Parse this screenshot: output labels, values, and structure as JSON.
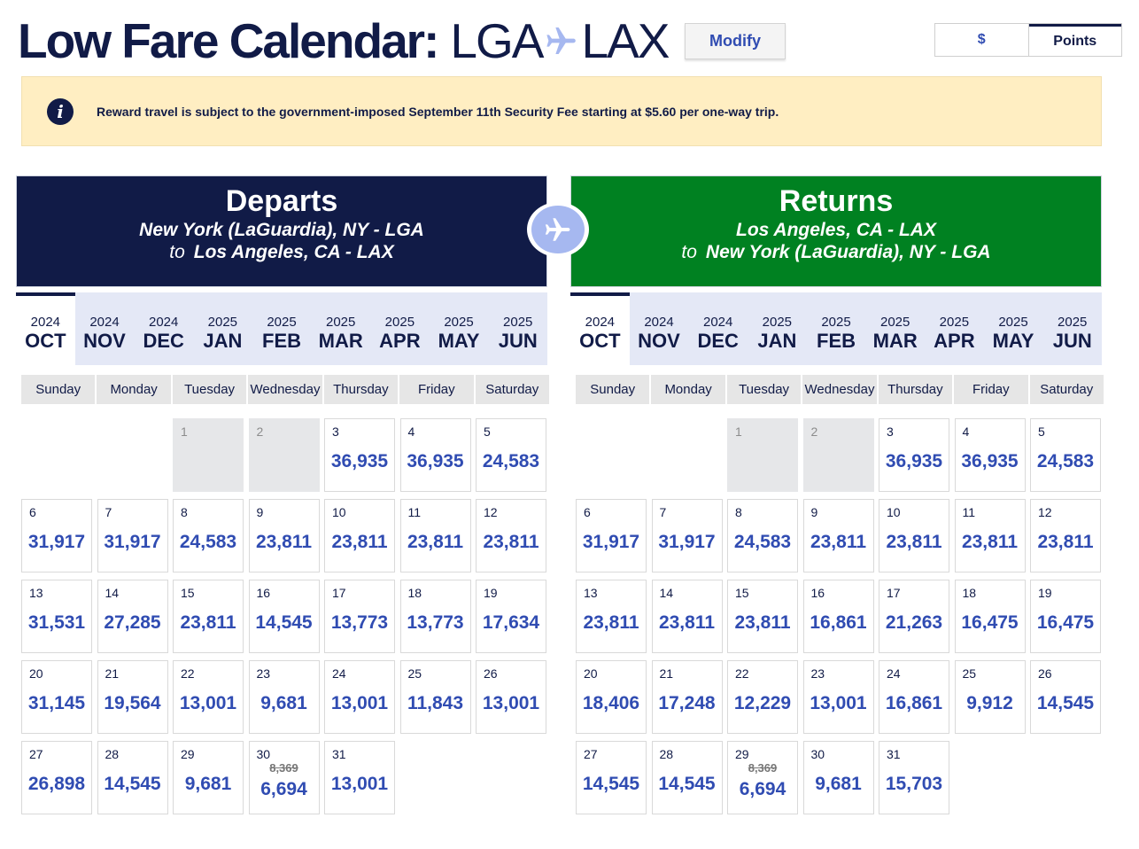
{
  "header": {
    "title": "Low Fare Calendar:",
    "origin_code": "LGA",
    "destination_code": "LAX",
    "modify_label": "Modify",
    "currency_options": [
      "$",
      "Points"
    ],
    "selected_currency": "Points"
  },
  "notice": {
    "icon": "info-icon",
    "icon_glyph": "i",
    "text": "Reward travel is subject to the government-imposed September 11th Security Fee starting at $5.60 per one-way trip."
  },
  "colors": {
    "navy": "#111b47",
    "green": "#008121",
    "fare_blue": "#304cb2",
    "notice_bg": "#ffeec2",
    "month_strip_bg": "#e4e8f6"
  },
  "panels": [
    {
      "title": "Departs",
      "from": "New York (LaGuardia), NY - LGA",
      "to_word": "to",
      "to": "Los Angeles, CA - LAX",
      "selected_month": "OCT",
      "months": [
        {
          "year": "2024",
          "month": "OCT"
        },
        {
          "year": "2024",
          "month": "NOV"
        },
        {
          "year": "2024",
          "month": "DEC"
        },
        {
          "year": "2025",
          "month": "JAN"
        },
        {
          "year": "2025",
          "month": "FEB"
        },
        {
          "year": "2025",
          "month": "MAR"
        },
        {
          "year": "2025",
          "month": "APR"
        },
        {
          "year": "2025",
          "month": "MAY"
        },
        {
          "year": "2025",
          "month": "JUN"
        }
      ],
      "weekdays": [
        "Sunday",
        "Monday",
        "Tuesday",
        "Wednesday",
        "Thursday",
        "Friday",
        "Saturday"
      ],
      "leading_blanks": 2,
      "days": [
        {
          "day": "1",
          "disabled": true
        },
        {
          "day": "2",
          "disabled": true
        },
        {
          "day": "3",
          "fare": "36,935"
        },
        {
          "day": "4",
          "fare": "36,935"
        },
        {
          "day": "5",
          "fare": "24,583"
        },
        {
          "day": "6",
          "fare": "31,917"
        },
        {
          "day": "7",
          "fare": "31,917"
        },
        {
          "day": "8",
          "fare": "24,583"
        },
        {
          "day": "9",
          "fare": "23,811"
        },
        {
          "day": "10",
          "fare": "23,811"
        },
        {
          "day": "11",
          "fare": "23,811"
        },
        {
          "day": "12",
          "fare": "23,811"
        },
        {
          "day": "13",
          "fare": "31,531"
        },
        {
          "day": "14",
          "fare": "27,285"
        },
        {
          "day": "15",
          "fare": "23,811"
        },
        {
          "day": "16",
          "fare": "14,545"
        },
        {
          "day": "17",
          "fare": "13,773"
        },
        {
          "day": "18",
          "fare": "13,773"
        },
        {
          "day": "19",
          "fare": "17,634"
        },
        {
          "day": "20",
          "fare": "31,145"
        },
        {
          "day": "21",
          "fare": "19,564"
        },
        {
          "day": "22",
          "fare": "13,001"
        },
        {
          "day": "23",
          "fare": "9,681"
        },
        {
          "day": "24",
          "fare": "13,001"
        },
        {
          "day": "25",
          "fare": "11,843"
        },
        {
          "day": "26",
          "fare": "13,001"
        },
        {
          "day": "27",
          "fare": "26,898"
        },
        {
          "day": "28",
          "fare": "14,545"
        },
        {
          "day": "29",
          "fare": "9,681"
        },
        {
          "day": "30",
          "fare": "6,694",
          "old_fare": "8,369"
        },
        {
          "day": "31",
          "fare": "13,001"
        }
      ]
    },
    {
      "title": "Returns",
      "from": "Los Angeles, CA - LAX",
      "to_word": "to",
      "to": "New York (LaGuardia), NY - LGA",
      "selected_month": "OCT",
      "months": [
        {
          "year": "2024",
          "month": "OCT"
        },
        {
          "year": "2024",
          "month": "NOV"
        },
        {
          "year": "2024",
          "month": "DEC"
        },
        {
          "year": "2025",
          "month": "JAN"
        },
        {
          "year": "2025",
          "month": "FEB"
        },
        {
          "year": "2025",
          "month": "MAR"
        },
        {
          "year": "2025",
          "month": "APR"
        },
        {
          "year": "2025",
          "month": "MAY"
        },
        {
          "year": "2025",
          "month": "JUN"
        }
      ],
      "weekdays": [
        "Sunday",
        "Monday",
        "Tuesday",
        "Wednesday",
        "Thursday",
        "Friday",
        "Saturday"
      ],
      "leading_blanks": 2,
      "days": [
        {
          "day": "1",
          "disabled": true
        },
        {
          "day": "2",
          "disabled": true
        },
        {
          "day": "3",
          "fare": "36,935"
        },
        {
          "day": "4",
          "fare": "36,935"
        },
        {
          "day": "5",
          "fare": "24,583"
        },
        {
          "day": "6",
          "fare": "31,917"
        },
        {
          "day": "7",
          "fare": "31,917"
        },
        {
          "day": "8",
          "fare": "24,583"
        },
        {
          "day": "9",
          "fare": "23,811"
        },
        {
          "day": "10",
          "fare": "23,811"
        },
        {
          "day": "11",
          "fare": "23,811"
        },
        {
          "day": "12",
          "fare": "23,811"
        },
        {
          "day": "13",
          "fare": "23,811"
        },
        {
          "day": "14",
          "fare": "23,811"
        },
        {
          "day": "15",
          "fare": "23,811"
        },
        {
          "day": "16",
          "fare": "16,861"
        },
        {
          "day": "17",
          "fare": "21,263"
        },
        {
          "day": "18",
          "fare": "16,475"
        },
        {
          "day": "19",
          "fare": "16,475"
        },
        {
          "day": "20",
          "fare": "18,406"
        },
        {
          "day": "21",
          "fare": "17,248"
        },
        {
          "day": "22",
          "fare": "12,229"
        },
        {
          "day": "23",
          "fare": "13,001"
        },
        {
          "day": "24",
          "fare": "16,861"
        },
        {
          "day": "25",
          "fare": "9,912"
        },
        {
          "day": "26",
          "fare": "14,545"
        },
        {
          "day": "27",
          "fare": "14,545"
        },
        {
          "day": "28",
          "fare": "14,545"
        },
        {
          "day": "29",
          "fare": "6,694",
          "old_fare": "8,369"
        },
        {
          "day": "30",
          "fare": "9,681"
        },
        {
          "day": "31",
          "fare": "15,703"
        }
      ]
    }
  ]
}
